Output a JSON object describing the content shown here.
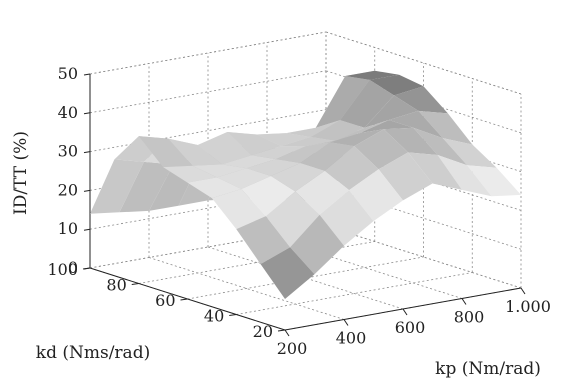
{
  "chart_data": {
    "type": "surface",
    "title": "",
    "zlabel": "ID/TT (%)",
    "xlabel": "kp (Nm/rad)",
    "ylabel": "kd (Nms/rad)",
    "z_ticks": [
      "0",
      "10",
      "20",
      "30",
      "40",
      "50"
    ],
    "x_ticks": [
      "200",
      "400",
      "600",
      "800",
      "1.000"
    ],
    "y_ticks": [
      "20",
      "40",
      "60",
      "80",
      "100"
    ],
    "zlim": [
      0,
      50
    ],
    "xlim": [
      200,
      1000
    ],
    "ylim": [
      20,
      100
    ],
    "colormap": "grayscale",
    "grid": true,
    "x_values": [
      200,
      300,
      400,
      500,
      600,
      700,
      800,
      900,
      1000
    ],
    "y_values": [
      20,
      30,
      40,
      50,
      60,
      70,
      80,
      90,
      100
    ],
    "z_values": [
      [
        8,
        13,
        19,
        24,
        28,
        31,
        28,
        25,
        24
      ],
      [
        15,
        18,
        25,
        30,
        34,
        37,
        35,
        31,
        29
      ],
      [
        22,
        24,
        29,
        33,
        38,
        41,
        40,
        36,
        33
      ],
      [
        28,
        29,
        31,
        33,
        37,
        38,
        40,
        41,
        39
      ],
      [
        30,
        30,
        31,
        32,
        34,
        34,
        36,
        43,
        44
      ],
      [
        32,
        31,
        30,
        31,
        32,
        33,
        36,
        45,
        45
      ],
      [
        38,
        36,
        33,
        35,
        33,
        32,
        32,
        44,
        44
      ],
      [
        30,
        28,
        26,
        27,
        28,
        27,
        24,
        22,
        20
      ],
      [
        14,
        13,
        12,
        12,
        12,
        11,
        10,
        8,
        6
      ]
    ]
  }
}
